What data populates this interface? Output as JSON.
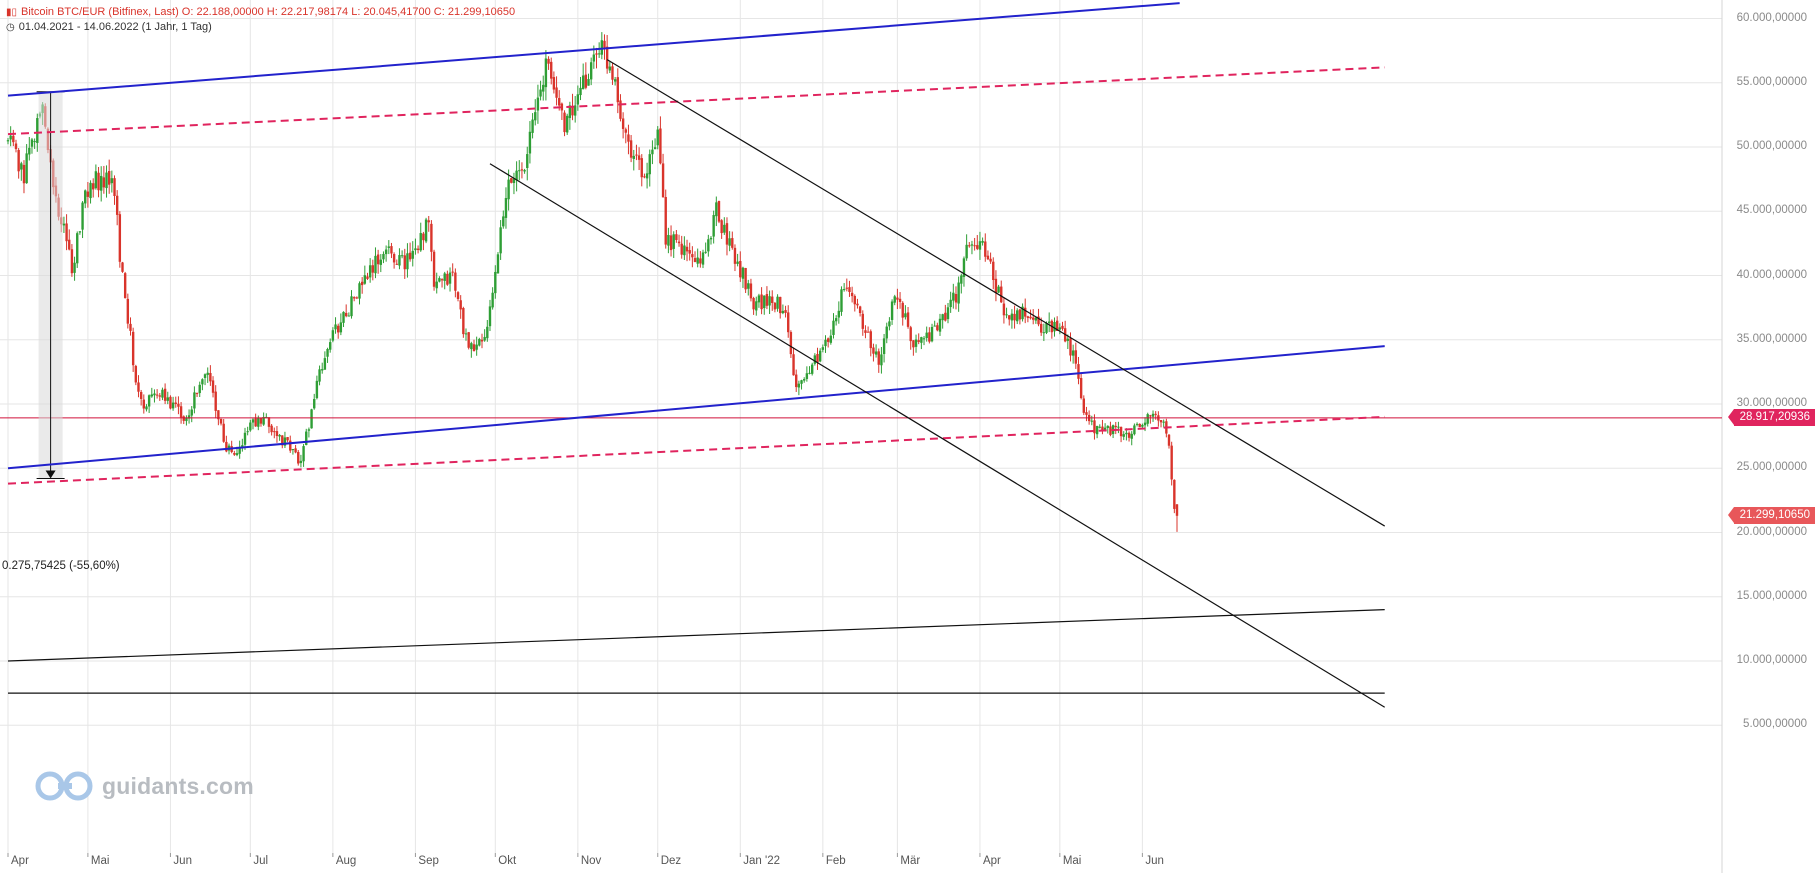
{
  "header": {
    "line1": "Bitcoin BTC/EUR (Bitfinex, Last)  O: 22.188,00000  H: 22.217,98174  L: 20.045,41700  C: 21.299,10650",
    "line2": "01.04.2021 - 14.06.2022   (1 Jahr, 1 Tag)",
    "line1_icon": "bar-chart-icon",
    "line2_icon": "clock-icon"
  },
  "logo": {
    "text": "guidants.com",
    "icon": "guidants-logo-icon"
  },
  "colors": {
    "up": "#2e9e35",
    "down": "#d9342b",
    "blue": "#2222cc",
    "crimson": "#e0245e",
    "hline": "#d0103a",
    "black": "#111111"
  },
  "price_tags": [
    {
      "label": "28.917,20936",
      "value": 28917.20936,
      "color": "#e0245e"
    },
    {
      "label": "21.299,10650",
      "value": 21299.1065,
      "color": "#e8575a"
    }
  ],
  "annotation": {
    "text": "0.275,75425 (-55,60%)"
  },
  "chart_data": {
    "type": "candlestick",
    "title": "Bitcoin BTC/EUR (Bitfinex, Last)",
    "x_range": [
      "2021-04-01",
      "2022-06-14"
    ],
    "y_range": [
      4000,
      61000
    ],
    "y_ticks": [
      {
        "value": 5000,
        "label": "5.000,00000"
      },
      {
        "value": 10000,
        "label": "10.000,00000"
      },
      {
        "value": 15000,
        "label": "15.000,00000"
      },
      {
        "value": 20000,
        "label": "20.000,00000"
      },
      {
        "value": 25000,
        "label": "25.000,00000"
      },
      {
        "value": 30000,
        "label": "30.000,00000"
      },
      {
        "value": 35000,
        "label": "35.000,00000"
      },
      {
        "value": 40000,
        "label": "40.000,00000"
      },
      {
        "value": 45000,
        "label": "45.000,00000"
      },
      {
        "value": 50000,
        "label": "50.000,00000"
      },
      {
        "value": 55000,
        "label": "55.000,00000"
      },
      {
        "value": 60000,
        "label": "60.000,00000"
      }
    ],
    "x_ticks": [
      {
        "date": "2021-04-01",
        "label": "Apr"
      },
      {
        "date": "2021-05-01",
        "label": "Mai"
      },
      {
        "date": "2021-06-01",
        "label": "Jun"
      },
      {
        "date": "2021-07-01",
        "label": "Jul"
      },
      {
        "date": "2021-08-01",
        "label": "Aug"
      },
      {
        "date": "2021-09-01",
        "label": "Sep"
      },
      {
        "date": "2021-10-01",
        "label": "Okt"
      },
      {
        "date": "2021-11-01",
        "label": "Nov"
      },
      {
        "date": "2021-12-01",
        "label": "Dez"
      },
      {
        "date": "2022-01-01",
        "label": "Jan '22"
      },
      {
        "date": "2022-02-01",
        "label": "Feb"
      },
      {
        "date": "2022-03-01",
        "label": "Mär"
      },
      {
        "date": "2022-04-01",
        "label": "Apr"
      },
      {
        "date": "2022-05-01",
        "label": "Mai"
      },
      {
        "date": "2022-06-01",
        "label": "Jun"
      }
    ],
    "grid": true,
    "ohlc_last": {
      "open": 22188.0,
      "high": 22217.98174,
      "low": 20045.417,
      "close": 21299.1065
    },
    "close_path": [
      [
        "2021-04-01",
        50500
      ],
      [
        "2021-04-07",
        48000
      ],
      [
        "2021-04-14",
        53200
      ],
      [
        "2021-04-18",
        47000
      ],
      [
        "2021-04-25",
        40500
      ],
      [
        "2021-04-30",
        46500
      ],
      [
        "2021-05-03",
        47500
      ],
      [
        "2021-05-11",
        47000
      ],
      [
        "2021-05-13",
        41500
      ],
      [
        "2021-05-19",
        32000
      ],
      [
        "2021-05-22",
        30000
      ],
      [
        "2021-05-27",
        31000
      ],
      [
        "2021-06-01",
        30000
      ],
      [
        "2021-06-07",
        29000
      ],
      [
        "2021-06-10",
        30500
      ],
      [
        "2021-06-15",
        32500
      ],
      [
        "2021-06-22",
        26500
      ],
      [
        "2021-06-26",
        26000
      ],
      [
        "2021-07-01",
        28500
      ],
      [
        "2021-07-07",
        28500
      ],
      [
        "2021-07-14",
        27000
      ],
      [
        "2021-07-20",
        25500
      ],
      [
        "2021-07-26",
        31500
      ],
      [
        "2021-07-31",
        35000
      ],
      [
        "2021-08-07",
        37500
      ],
      [
        "2021-08-14",
        40000
      ],
      [
        "2021-08-21",
        42000
      ],
      [
        "2021-08-28",
        41000
      ],
      [
        "2021-09-06",
        44000
      ],
      [
        "2021-09-08",
        39000
      ],
      [
        "2021-09-15",
        40000
      ],
      [
        "2021-09-21",
        34000
      ],
      [
        "2021-09-28",
        35500
      ],
      [
        "2021-10-01",
        40500
      ],
      [
        "2021-10-06",
        47000
      ],
      [
        "2021-10-12",
        49000
      ],
      [
        "2021-10-16",
        52500
      ],
      [
        "2021-10-20",
        56500
      ],
      [
        "2021-10-27",
        52000
      ],
      [
        "2021-11-01",
        53500
      ],
      [
        "2021-11-09",
        58000
      ],
      [
        "2021-11-15",
        55500
      ],
      [
        "2021-11-18",
        51500
      ],
      [
        "2021-11-26",
        47500
      ],
      [
        "2021-12-01",
        50500
      ],
      [
        "2021-12-04",
        43000
      ],
      [
        "2021-12-10",
        42000
      ],
      [
        "2021-12-17",
        41000
      ],
      [
        "2021-12-23",
        45000
      ],
      [
        "2021-12-31",
        41000
      ],
      [
        "2022-01-06",
        38000
      ],
      [
        "2022-01-12",
        38000
      ],
      [
        "2022-01-18",
        37500
      ],
      [
        "2022-01-22",
        31000
      ],
      [
        "2022-01-27",
        33000
      ],
      [
        "2022-02-01",
        34000
      ],
      [
        "2022-02-09",
        39000
      ],
      [
        "2022-02-14",
        37500
      ],
      [
        "2022-02-22",
        33000
      ],
      [
        "2022-02-28",
        38500
      ],
      [
        "2022-03-07",
        35000
      ],
      [
        "2022-03-15",
        35500
      ],
      [
        "2022-03-23",
        38500
      ],
      [
        "2022-03-28",
        42500
      ],
      [
        "2022-04-03",
        42000
      ],
      [
        "2022-04-11",
        36500
      ],
      [
        "2022-04-18",
        37000
      ],
      [
        "2022-04-24",
        36000
      ],
      [
        "2022-05-02",
        36000
      ],
      [
        "2022-05-07",
        33000
      ],
      [
        "2022-05-10",
        29000
      ],
      [
        "2022-05-14",
        28000
      ],
      [
        "2022-05-20",
        28000
      ],
      [
        "2022-05-27",
        27500
      ],
      [
        "2022-06-01",
        28500
      ],
      [
        "2022-06-05",
        29000
      ],
      [
        "2022-06-09",
        28500
      ],
      [
        "2022-06-11",
        27000
      ],
      [
        "2022-06-13",
        22000
      ],
      [
        "2022-06-14",
        21299
      ]
    ],
    "lines": [
      {
        "style": "solid",
        "color": "#2222cc",
        "from": [
          "2021-04-01",
          54000
        ],
        "to": [
          "2022-06-15",
          61200
        ]
      },
      {
        "style": "solid",
        "color": "#2222cc",
        "from": [
          "2021-04-01",
          25000
        ],
        "to": [
          "2022-08-31",
          34500
        ]
      },
      {
        "style": "dashed",
        "color": "#e0245e",
        "from": [
          "2021-04-01",
          51000
        ],
        "to": [
          "2022-08-31",
          56200
        ]
      },
      {
        "style": "dashed",
        "color": "#e0245e",
        "from": [
          "2021-04-01",
          23800
        ],
        "to": [
          "2022-08-31",
          29000
        ]
      },
      {
        "style": "solid",
        "color": "#111111",
        "from": [
          "2021-11-12",
          56800
        ],
        "to": [
          "2022-08-31",
          20500
        ]
      },
      {
        "style": "solid",
        "color": "#111111",
        "from": [
          "2021-09-29",
          48700
        ],
        "to": [
          "2022-08-31",
          6400
        ]
      },
      {
        "style": "solid",
        "color": "#111111",
        "from": [
          "2021-04-01",
          10000
        ],
        "to": [
          "2022-08-31",
          14000
        ]
      },
      {
        "style": "solid",
        "color": "#111111",
        "from": [
          "2021-04-01",
          7500
        ],
        "to": [
          "2022-08-31",
          7500
        ]
      }
    ],
    "horizontal_levels": [
      {
        "value": 28917.20936,
        "color": "#d0103a"
      }
    ],
    "measure": {
      "from": [
        "2021-04-17",
        54300
      ],
      "to": [
        "2021-04-17",
        24200
      ],
      "label": "0.275,75425 (-55,60%)"
    }
  }
}
